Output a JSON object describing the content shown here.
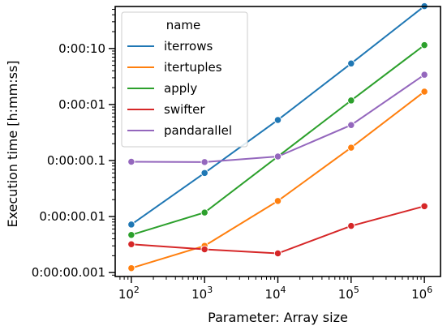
{
  "chart_data": {
    "type": "line",
    "xlabel": "Parameter: Array size",
    "ylabel": "Execution time [h:mm:ss]",
    "x_scale": "log",
    "y_scale": "log",
    "x": [
      100,
      1000,
      10000,
      100000,
      1000000
    ],
    "x_tick_labels": [
      {
        "value": 100,
        "base": "10",
        "exp": "2"
      },
      {
        "value": 1000,
        "base": "10",
        "exp": "3"
      },
      {
        "value": 10000,
        "base": "10",
        "exp": "4"
      },
      {
        "value": 100000,
        "base": "10",
        "exp": "5"
      },
      {
        "value": 1000000,
        "base": "10",
        "exp": "6"
      }
    ],
    "y_ticks": [
      {
        "value": 0.001,
        "label": "0:00:00.001"
      },
      {
        "value": 0.01,
        "label": "0:00:00.01"
      },
      {
        "value": 0.1,
        "label": "0:00:00.1"
      },
      {
        "value": 1,
        "label": "0:00:01"
      },
      {
        "value": 10,
        "label": "0:00:10"
      }
    ],
    "legend": {
      "title": "name",
      "position": "top-left"
    },
    "grid": false,
    "series": [
      {
        "name": "iterrows",
        "color": "#1f77b4",
        "values": [
          0.0072,
          0.06,
          0.53,
          5.4,
          57
        ]
      },
      {
        "name": "itertuples",
        "color": "#ff7f0e",
        "values": [
          0.0012,
          0.003,
          0.019,
          0.17,
          1.7
        ]
      },
      {
        "name": "apply",
        "color": "#2ca02c",
        "values": [
          0.0047,
          0.0118,
          0.118,
          1.18,
          11.5
        ]
      },
      {
        "name": "swifter",
        "color": "#d62728",
        "values": [
          0.0032,
          0.0026,
          0.0022,
          0.0068,
          0.0153
        ]
      },
      {
        "name": "pandarallel",
        "color": "#9467bd",
        "values": [
          0.095,
          0.094,
          0.118,
          0.43,
          3.4
        ]
      }
    ]
  }
}
